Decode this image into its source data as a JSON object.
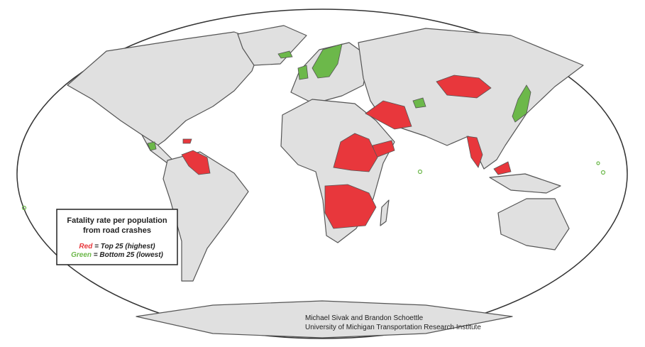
{
  "legend": {
    "title": [
      "Fatality rate per population",
      "from road crashes"
    ],
    "items": [
      {
        "key": "Red",
        "text": "= Top 25 (highest)"
      },
      {
        "key": "Green",
        "text": "= Bottom 25 (lowest)"
      }
    ]
  },
  "credit": [
    "Michael Sivak and Brandon Schoettle",
    "University of Michigan Transportation Research Institute"
  ]
}
